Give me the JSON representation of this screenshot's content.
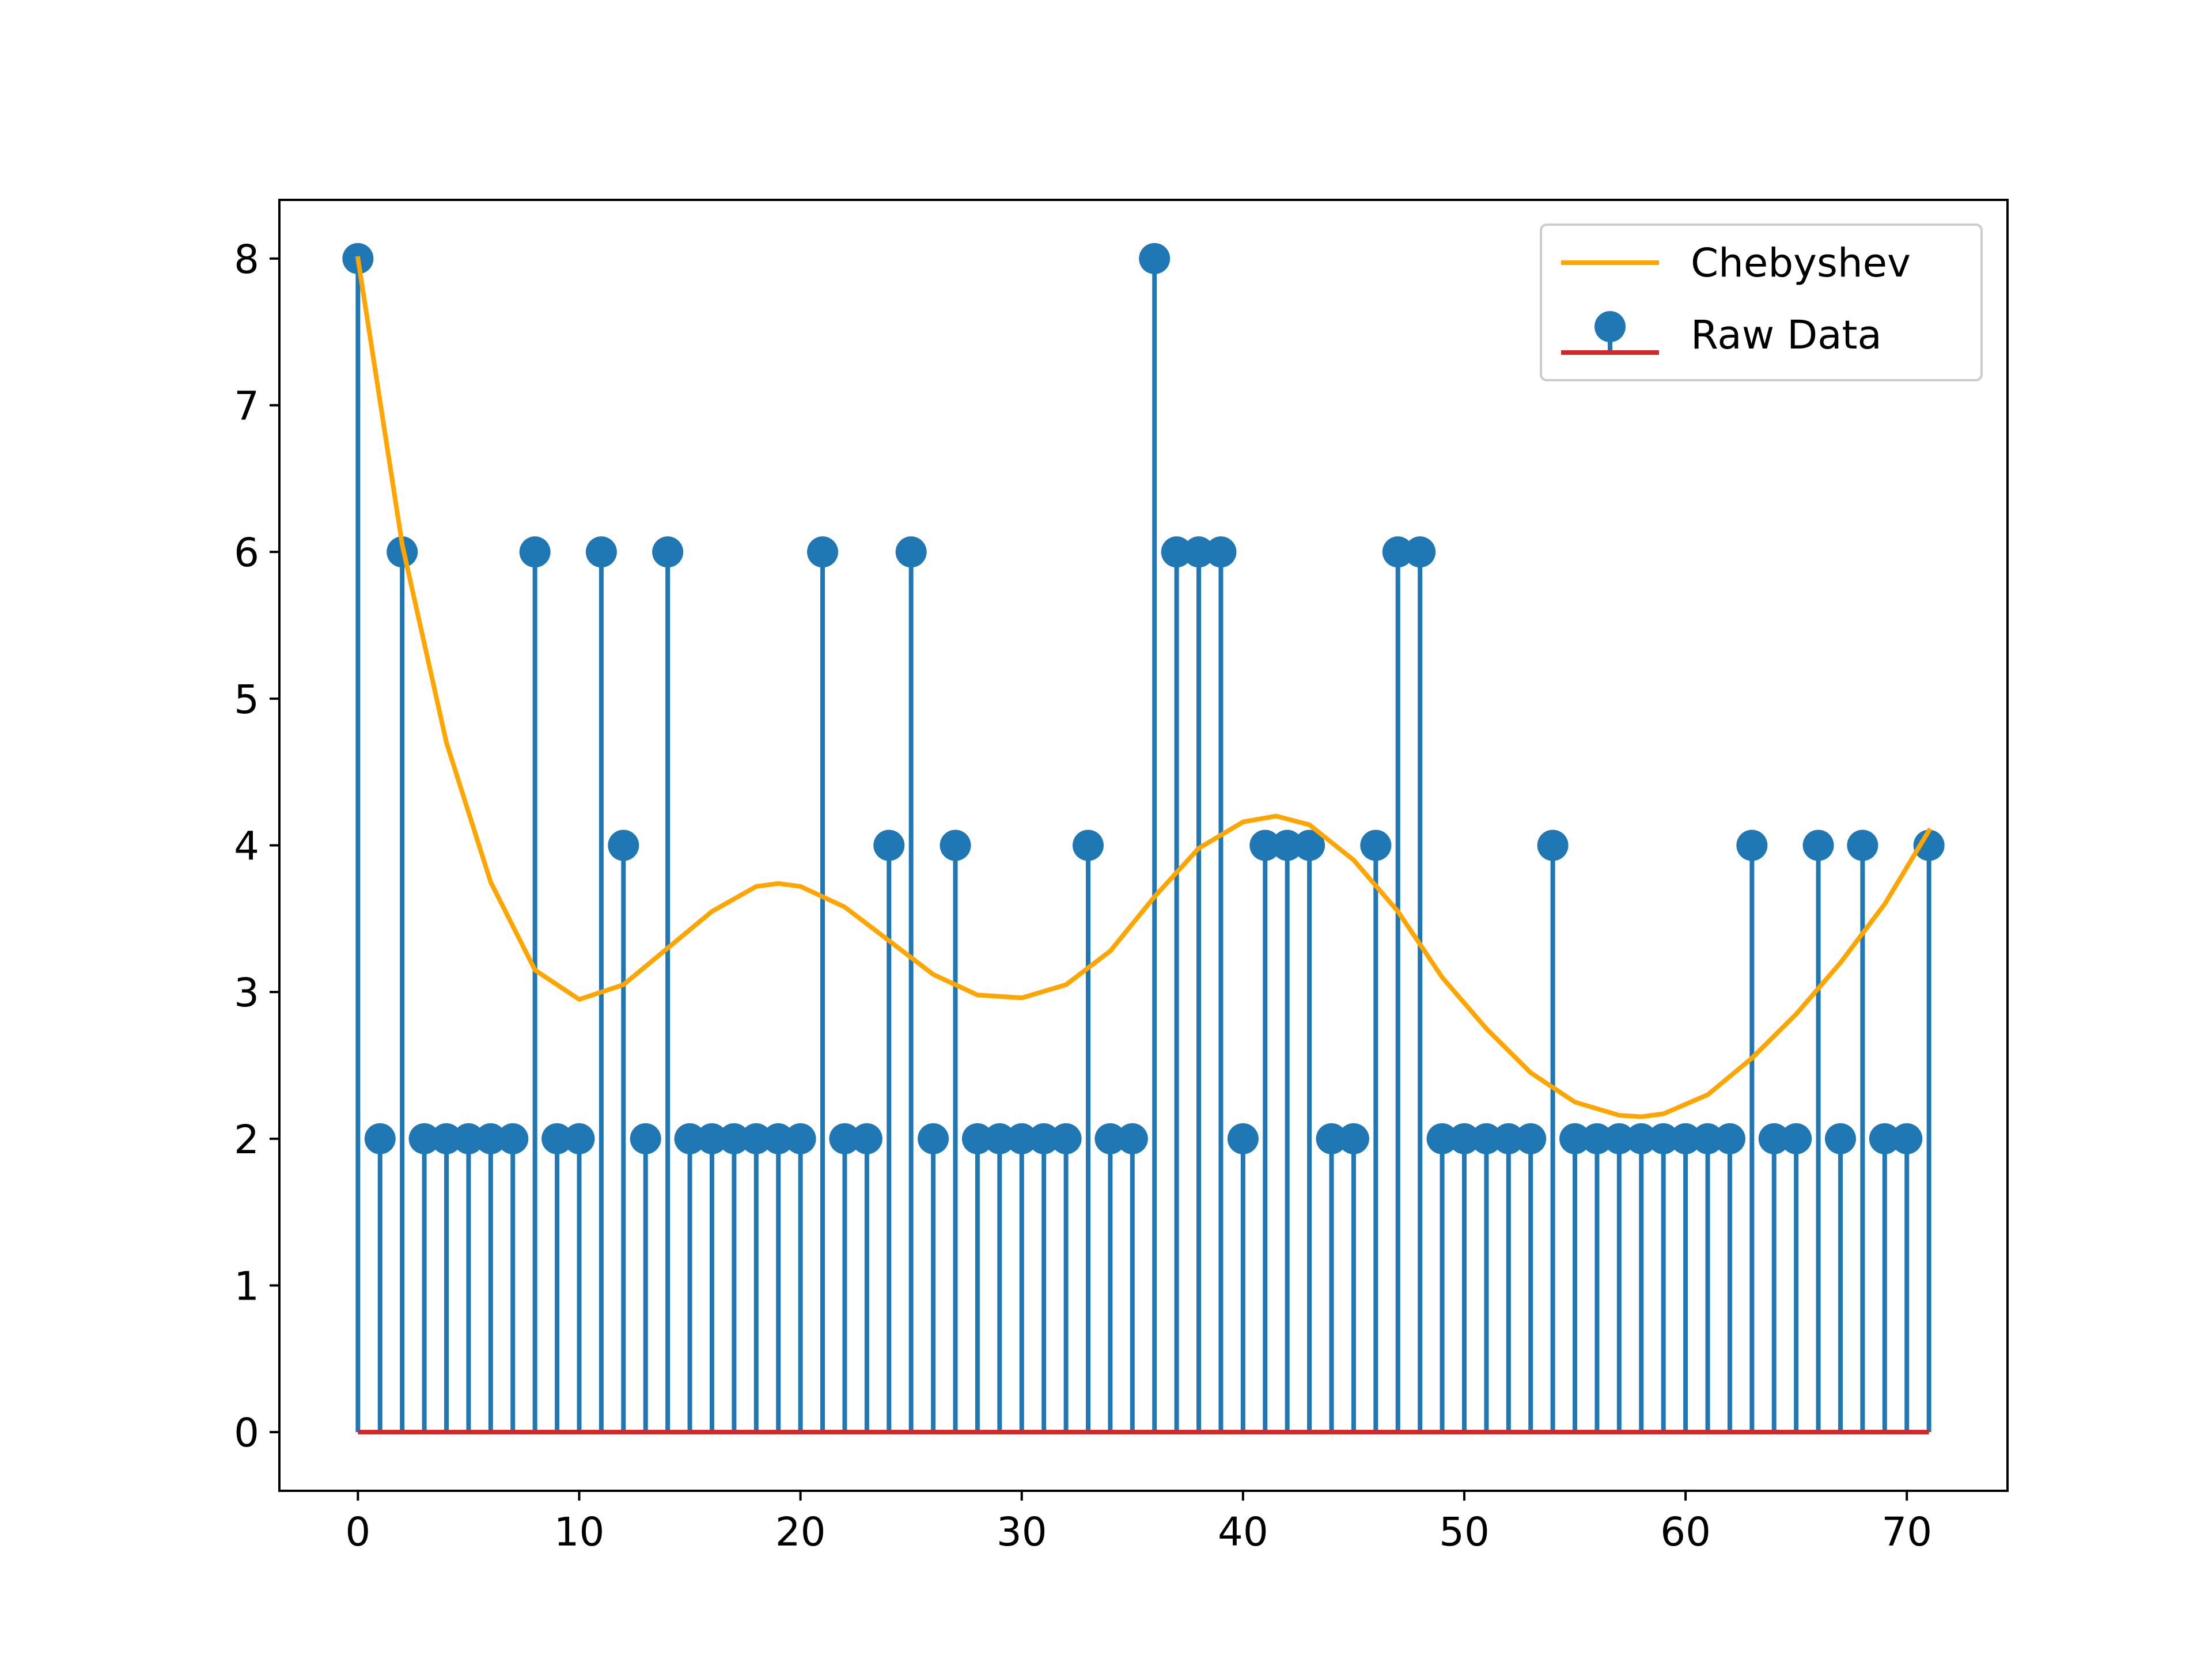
{
  "chart_data": {
    "type": "stem",
    "title": "",
    "xlabel": "",
    "ylabel": "",
    "xlim": [
      -3.55,
      74.55
    ],
    "ylim": [
      -0.4,
      8.4
    ],
    "xticks": [
      0,
      10,
      20,
      30,
      40,
      50,
      60,
      70
    ],
    "yticks": [
      0,
      1,
      2,
      3,
      4,
      5,
      6,
      7,
      8
    ],
    "grid": false,
    "legend_position": "top-right",
    "baseline": 0,
    "series": [
      {
        "name": "Raw Data",
        "kind": "stem",
        "color": "#1f77b4",
        "baseline_color": "#d62728",
        "x": [
          0,
          1,
          2,
          3,
          4,
          5,
          6,
          7,
          8,
          9,
          10,
          11,
          12,
          13,
          14,
          15,
          16,
          17,
          18,
          19,
          20,
          21,
          22,
          23,
          24,
          25,
          26,
          27,
          28,
          29,
          30,
          31,
          32,
          33,
          34,
          35,
          36,
          37,
          38,
          39,
          40,
          41,
          42,
          43,
          44,
          45,
          46,
          47,
          48,
          49,
          50,
          51,
          52,
          53,
          54,
          55,
          56,
          57,
          58,
          59,
          60,
          61,
          62,
          63,
          64,
          65,
          66,
          67,
          68,
          69,
          70,
          71
        ],
        "values": [
          8,
          2,
          6,
          2,
          2,
          2,
          2,
          2,
          6,
          2,
          2,
          6,
          4,
          2,
          6,
          2,
          2,
          2,
          2,
          2,
          2,
          6,
          2,
          2,
          4,
          6,
          2,
          4,
          2,
          2,
          2,
          2,
          2,
          4,
          2,
          2,
          8,
          6,
          6,
          6,
          2,
          4,
          4,
          4,
          2,
          2,
          4,
          6,
          6,
          2,
          2,
          2,
          2,
          2,
          4,
          2,
          2,
          2,
          2,
          2,
          2,
          2,
          2,
          4,
          2,
          2,
          4,
          2,
          4,
          2,
          2,
          4
        ]
      },
      {
        "name": "Chebyshev",
        "kind": "line",
        "color": "#ffa500",
        "x": [
          0,
          2,
          4,
          6,
          8,
          10,
          12,
          14,
          16,
          18,
          19,
          20,
          22,
          24,
          26,
          28,
          30,
          32,
          34,
          36,
          38,
          40,
          41.5,
          43,
          45,
          47,
          49,
          51,
          53,
          55,
          57,
          58,
          59,
          61,
          63,
          65,
          67,
          69,
          71
        ],
        "values": [
          8.0,
          6.05,
          4.7,
          3.75,
          3.15,
          2.95,
          3.05,
          3.3,
          3.55,
          3.72,
          3.74,
          3.72,
          3.58,
          3.35,
          3.12,
          2.98,
          2.96,
          3.05,
          3.28,
          3.65,
          3.98,
          4.16,
          4.2,
          4.14,
          3.9,
          3.55,
          3.1,
          2.75,
          2.45,
          2.25,
          2.16,
          2.15,
          2.17,
          2.3,
          2.55,
          2.85,
          3.2,
          3.6,
          4.1
        ]
      }
    ]
  }
}
